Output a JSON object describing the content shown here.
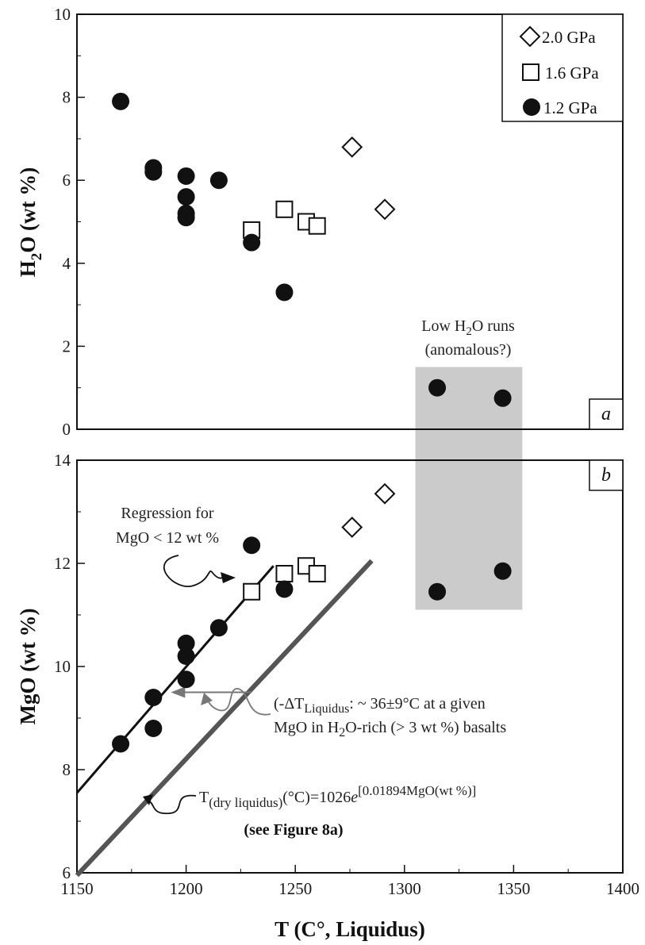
{
  "chart_data": [
    {
      "panel": "a",
      "type": "scatter",
      "ylabel": {
        "main": "H",
        "sub": "2",
        "rest": "O (wt %)"
      },
      "xlim": [
        1150,
        1400
      ],
      "ylim": [
        0,
        10
      ],
      "yticks": [
        0,
        2,
        4,
        6,
        8,
        10
      ],
      "legend_position": "top-right",
      "series": [
        {
          "name": "2.0 GPa",
          "marker": "diamond-open",
          "x": [
            1276,
            1291
          ],
          "y": [
            6.8,
            5.3
          ]
        },
        {
          "name": "1.6 GPa",
          "marker": "square-open",
          "x": [
            1230,
            1245,
            1255,
            1260
          ],
          "y": [
            4.8,
            5.3,
            5.0,
            4.9
          ]
        },
        {
          "name": "1.2 GPa",
          "marker": "circle-filled",
          "x": [
            1170,
            1185,
            1185,
            1200,
            1200,
            1200,
            1200,
            1215,
            1230,
            1245,
            1315,
            1345
          ],
          "y": [
            7.9,
            6.3,
            6.2,
            6.1,
            5.6,
            5.2,
            5.1,
            6.0,
            4.5,
            3.3,
            1.0,
            0.75
          ]
        }
      ],
      "annotation_lines": [
        "Low H",
        "2",
        "O runs",
        "(anomalous?)"
      ]
    },
    {
      "panel": "b",
      "type": "scatter",
      "xlabel": "T (C°, Liquidus)",
      "ylabel": "MgO (wt %)",
      "xlim": [
        1150,
        1400
      ],
      "ylim": [
        6,
        14
      ],
      "xticks": [
        1150,
        1200,
        1250,
        1300,
        1350,
        1400
      ],
      "yticks": [
        6,
        8,
        10,
        12,
        14
      ],
      "series": [
        {
          "name": "2.0 GPa",
          "marker": "diamond-open",
          "x": [
            1276,
            1291
          ],
          "y": [
            12.7,
            13.35
          ]
        },
        {
          "name": "1.6 GPa",
          "marker": "square-open",
          "x": [
            1230,
            1245,
            1255,
            1260
          ],
          "y": [
            11.45,
            11.8,
            11.95,
            11.8
          ]
        },
        {
          "name": "1.2 GPa",
          "marker": "circle-filled",
          "x": [
            1170,
            1185,
            1185,
            1200,
            1200,
            1200,
            1215,
            1230,
            1245,
            1315,
            1345
          ],
          "y": [
            8.5,
            8.8,
            9.4,
            9.75,
            10.2,
            10.45,
            10.75,
            12.35,
            11.5,
            11.45,
            11.85
          ]
        }
      ],
      "lines": [
        {
          "name": "regression",
          "x": [
            1150,
            1240
          ],
          "y": [
            7.55,
            11.95
          ]
        },
        {
          "name": "dry-liquidus",
          "x": [
            1150,
            1285
          ],
          "y": [
            5.95,
            12.05
          ]
        }
      ],
      "shaded_region": {
        "x": [
          1305,
          1354
        ],
        "y_top_H2O": 1.5,
        "y_bottom_MgO": 11.1
      },
      "arrow_delta": {
        "from_x": 1230,
        "to_x": 1193,
        "y": 9.5
      },
      "annotations": {
        "regression_line1": "Regression for",
        "regression_line2": "MgO < 12 wt %",
        "delta_line1_prefix": "(-ΔT",
        "delta_line1_sub": "Liquidus",
        "delta_line1_suffix": ": ~ 36±9°C at a given",
        "delta_line2_a": "MgO in H",
        "delta_line2_sub": "2",
        "delta_line2_b": "O-rich (> 3 wt %) basalts",
        "eq_T": "T",
        "eq_sub": "(dry liquidus)",
        "eq_mid": "(°C)=1026",
        "eq_e": "e",
        "eq_sup": "[0.01894MgO(wt %)]",
        "see_figure": "(see Figure 8a)"
      }
    }
  ]
}
